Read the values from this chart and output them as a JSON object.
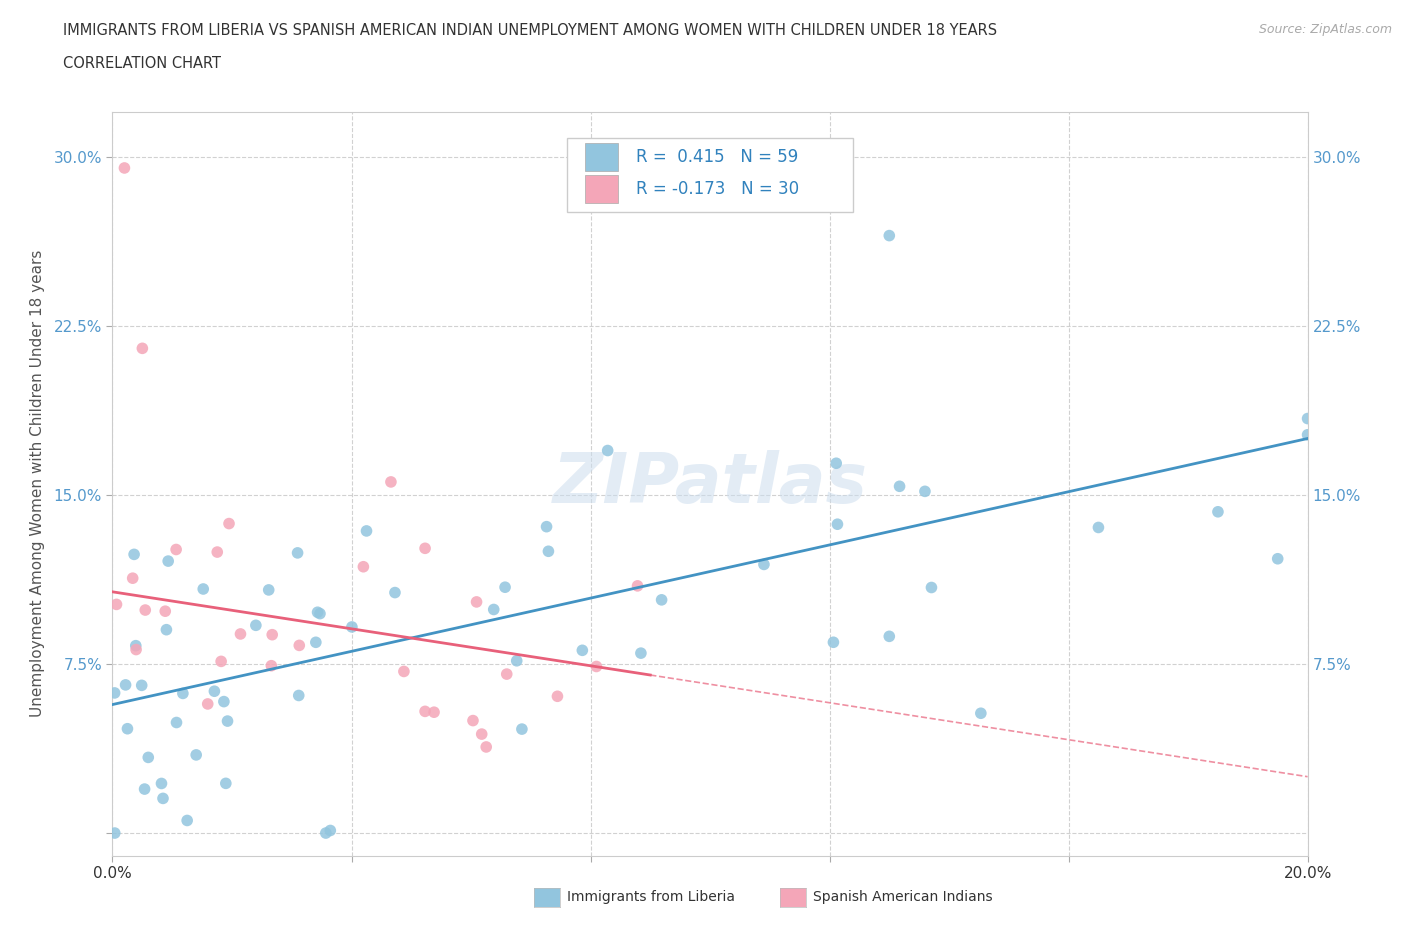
{
  "title_line1": "IMMIGRANTS FROM LIBERIA VS SPANISH AMERICAN INDIAN UNEMPLOYMENT AMONG WOMEN WITH CHILDREN UNDER 18 YEARS",
  "title_line2": "CORRELATION CHART",
  "source": "Source: ZipAtlas.com",
  "ylabel": "Unemployment Among Women with Children Under 18 years",
  "xlim": [
    0.0,
    0.2
  ],
  "ylim": [
    -0.01,
    0.32
  ],
  "blue_color": "#92c5de",
  "pink_color": "#f4a6b8",
  "blue_line_color": "#4393c3",
  "pink_line_color": "#e8607a",
  "legend_color": "#3182bd",
  "blue_line_x": [
    0.0,
    0.2
  ],
  "blue_line_y": [
    0.057,
    0.175
  ],
  "pink_line_x": [
    0.0,
    0.2
  ],
  "pink_line_y": [
    0.107,
    0.025
  ],
  "pink_line_solid_end": 0.09,
  "background_color": "#ffffff",
  "grid_color": "#cccccc",
  "watermark": "ZIPatlas"
}
